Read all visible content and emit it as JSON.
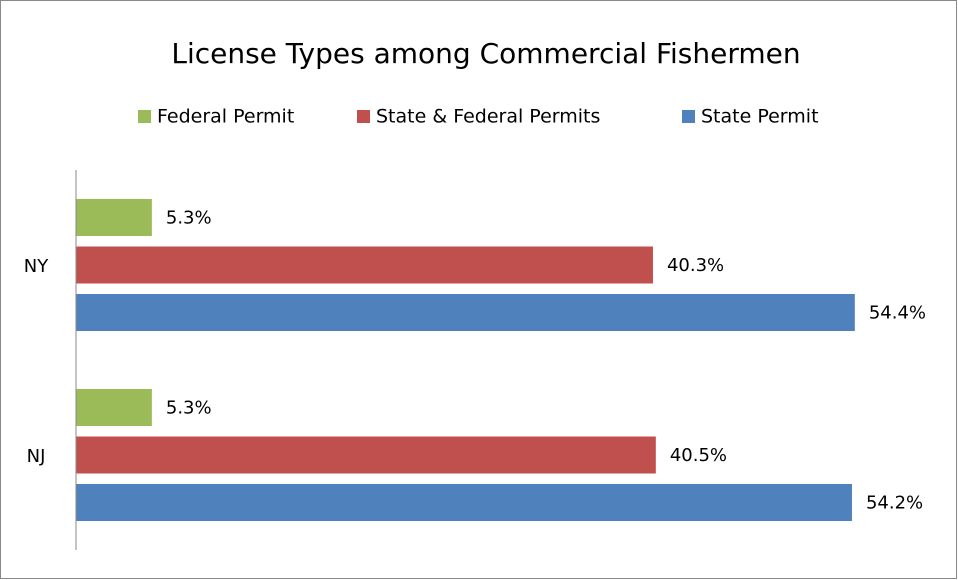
{
  "chart_data": {
    "type": "hbar",
    "title": "License Types among Commercial Fishermen",
    "categories": [
      "NY",
      "NJ"
    ],
    "series": [
      {
        "name": "Federal Permit",
        "color": "#9bbb59",
        "values": [
          5.3,
          5.3
        ],
        "value_labels": [
          "5.3%",
          "5.3%"
        ]
      },
      {
        "name": "State & Federal Permits",
        "color": "#c0504d",
        "values": [
          40.3,
          40.5
        ],
        "value_labels": [
          "40.3%",
          "40.5%"
        ]
      },
      {
        "name": "State Permit",
        "color": "#4f81bd",
        "values": [
          54.4,
          54.2
        ],
        "value_labels": [
          "54.4%",
          "54.2%"
        ]
      }
    ],
    "xlim": [
      0,
      60
    ],
    "legend": "top"
  }
}
